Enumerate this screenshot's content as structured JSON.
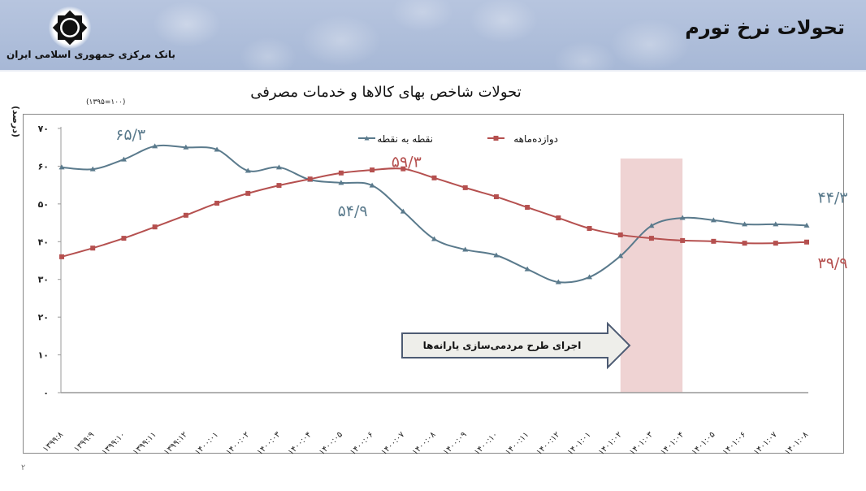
{
  "header": {
    "page_title": "تحولات نرخ تورم",
    "bank_name": "بانک مرکزی جمهوری اسلامی ایران",
    "logo_icon": "central-bank-emblem"
  },
  "colors": {
    "point_series": "#5a7a8c",
    "twelve_month_series": "#b5504f",
    "highlight_band": "#efd3d3",
    "arrow_fill": "#eeeeea",
    "arrow_stroke": "#4d5b73"
  },
  "page_number": "۲",
  "chart_data": {
    "type": "line",
    "title": "تحولات شاخص بهای کالاها و خدمات مصرفی",
    "subtitle": "(۱۳۹۵=۱۰۰)",
    "ylabel": "(درصد)",
    "xlabel": "",
    "ylim": [
      0,
      70
    ],
    "yticks": [
      0,
      10,
      20,
      30,
      40,
      50,
      60,
      70
    ],
    "ytick_labels": [
      "۰",
      "۱۰",
      "۲۰",
      "۳۰",
      "۴۰",
      "۵۰",
      "۶۰",
      "۷۰"
    ],
    "grid": false,
    "legend_position": "top-center",
    "categories": [
      "۱۳۹۹:۸",
      "۱۳۹۹:۹",
      "۱۳۹۹:۱۰",
      "۱۳۹۹:۱۱",
      "۱۳۹۹:۱۲",
      "۱۴۰۰:۰۱",
      "۱۴۰۰:۰۲",
      "۱۴۰۰:۰۳",
      "۱۴۰۰:۰۴",
      "۱۴۰۰:۰۵",
      "۱۴۰۰:۰۶",
      "۱۴۰۰:۰۷",
      "۱۴۰۰:۰۸",
      "۱۴۰۰:۰۹",
      "۱۴۰۰:۱۰",
      "۱۴۰۰:۱۱",
      "۱۴۰۰:۱۲",
      "۱۴۰۱:۰۱",
      "۱۴۰۱:۰۲",
      "۱۴۰۱:۰۳",
      "۱۴۰۱:۰۴",
      "۱۴۰۱:۰۵",
      "۱۴۰۱:۰۶",
      "۱۴۰۱:۰۷",
      "۱۴۰۱:۰۸"
    ],
    "series": [
      {
        "name": "نقطه به نقطه",
        "marker": "triangle",
        "color": "#5a7a8c",
        "values": [
          59.7,
          59.2,
          61.8,
          65.3,
          65.0,
          64.4,
          58.8,
          59.7,
          56.4,
          55.6,
          54.9,
          48.0,
          40.7,
          37.9,
          36.4,
          32.7,
          29.3,
          30.6,
          36.2,
          44.2,
          46.3,
          45.7,
          44.6,
          44.6,
          44.3
        ]
      },
      {
        "name": "دوازده‌ماهه",
        "marker": "square",
        "color": "#b5504f",
        "values": [
          36.0,
          38.3,
          40.9,
          43.9,
          47.0,
          50.2,
          52.8,
          54.9,
          56.6,
          58.2,
          59.0,
          59.3,
          56.9,
          54.3,
          51.9,
          49.1,
          46.3,
          43.5,
          41.8,
          40.9,
          40.3,
          40.1,
          39.6,
          39.6,
          39.9
        ]
      }
    ],
    "annotations": [
      {
        "text": "۶۵/۳",
        "series": 0,
        "index": 3,
        "value": 65.3
      },
      {
        "text": "۵۴/۹",
        "series": 0,
        "index": 10,
        "value": 54.9
      },
      {
        "text": "۵۹/۳",
        "series": 1,
        "index": 11,
        "value": 59.3
      },
      {
        "text": "۴۴/۳",
        "series": 0,
        "index": 24,
        "value": 44.3
      },
      {
        "text": "۳۹/۹",
        "series": 1,
        "index": 24,
        "value": 39.9
      }
    ],
    "highlight_band": {
      "from_index": 18,
      "to_index": 20,
      "label": ""
    },
    "arrow_callout": {
      "text": "اجرای طرح مردمی‌سازی یارانه‌ها",
      "points_to_index": 18
    }
  }
}
